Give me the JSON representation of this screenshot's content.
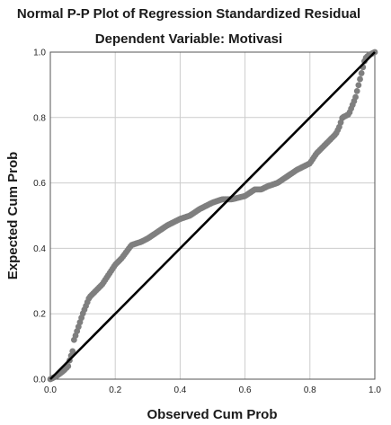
{
  "chart_data": {
    "type": "scatter",
    "title": "Normal P-P Plot of Regression Standardized Residual",
    "subtitle": "Dependent Variable: Motivasi",
    "xlabel": "Observed Cum Prob",
    "ylabel": "Expected Cum Prob",
    "xlim": [
      0,
      1
    ],
    "ylim": [
      0,
      1
    ],
    "xticks": [
      "0.0",
      "0.2",
      "0.4",
      "0.6",
      "0.8",
      "1.0"
    ],
    "yticks": [
      "0.0",
      "0.2",
      "0.4",
      "0.6",
      "0.8",
      "1.0"
    ],
    "grid": true,
    "legend": "none",
    "colors": {
      "points": "#7f7f7f",
      "reference_line": "#000000",
      "grid": "#cccccc",
      "frame": "#555555"
    },
    "reference_line": {
      "from": [
        0,
        0
      ],
      "to": [
        1,
        1
      ]
    },
    "points_curve": {
      "x": [
        0.0,
        0.02,
        0.04,
        0.055,
        0.06,
        0.065,
        0.07,
        0.073,
        0.08,
        0.09,
        0.1,
        0.12,
        0.14,
        0.16,
        0.18,
        0.2,
        0.22,
        0.25,
        0.28,
        0.3,
        0.33,
        0.36,
        0.38,
        0.4,
        0.43,
        0.46,
        0.5,
        0.53,
        0.56,
        0.6,
        0.63,
        0.65,
        0.67,
        0.7,
        0.73,
        0.76,
        0.78,
        0.8,
        0.82,
        0.84,
        0.86,
        0.88,
        0.89,
        0.9,
        0.92,
        0.94,
        0.95,
        0.96,
        0.97,
        0.98,
        1.0
      ],
      "y": [
        0.0,
        0.01,
        0.025,
        0.04,
        0.06,
        0.075,
        0.09,
        0.12,
        0.14,
        0.17,
        0.2,
        0.25,
        0.27,
        0.29,
        0.32,
        0.35,
        0.37,
        0.41,
        0.42,
        0.43,
        0.45,
        0.47,
        0.48,
        0.49,
        0.5,
        0.52,
        0.54,
        0.55,
        0.55,
        0.56,
        0.58,
        0.58,
        0.59,
        0.6,
        0.62,
        0.64,
        0.65,
        0.66,
        0.69,
        0.71,
        0.73,
        0.75,
        0.77,
        0.8,
        0.81,
        0.86,
        0.9,
        0.94,
        0.98,
        0.99,
        1.0
      ],
      "count": 220
    }
  }
}
